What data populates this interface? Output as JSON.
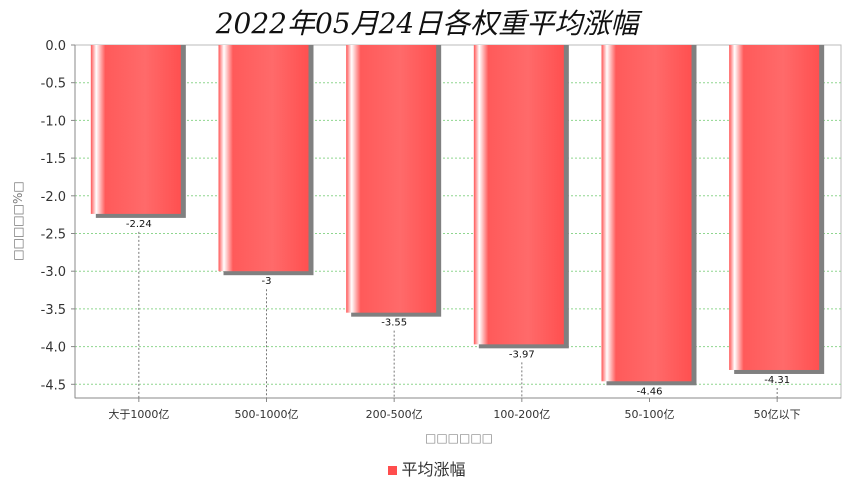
{
  "chart_data": {
    "type": "bar",
    "title": "2022年05月24日各权重平均涨幅",
    "categories": [
      "大于1000亿",
      "500-1000亿",
      "200-500亿",
      "100-200亿",
      "50-100亿",
      "50亿以下"
    ],
    "series": [
      {
        "name": "平均涨幅",
        "values": [
          -2.24,
          -3,
          -3.55,
          -3.97,
          -4.46,
          -4.31
        ],
        "color": "#ff4d4d"
      }
    ],
    "data_labels": [
      "-2.24",
      "-3",
      "-3.55",
      "-3.97",
      "-4.46",
      "-4.31"
    ],
    "ylim": [
      -4.7,
      0.0
    ],
    "yticks": [
      0.0,
      -0.5,
      -1.0,
      -1.5,
      -2.0,
      -2.5,
      -3.0,
      -3.5,
      -4.0,
      -4.5
    ],
    "ytick_labels": [
      "0.0",
      "-0.5",
      "-1.0",
      "-1.5",
      "-2.0",
      "-2.5",
      "-3.0",
      "-3.5",
      "-4.0",
      "-4.5"
    ],
    "ylabel": "□□□□□%□",
    "xlabel": "□□□□□□",
    "grid": true,
    "legend_position": "bottom"
  }
}
